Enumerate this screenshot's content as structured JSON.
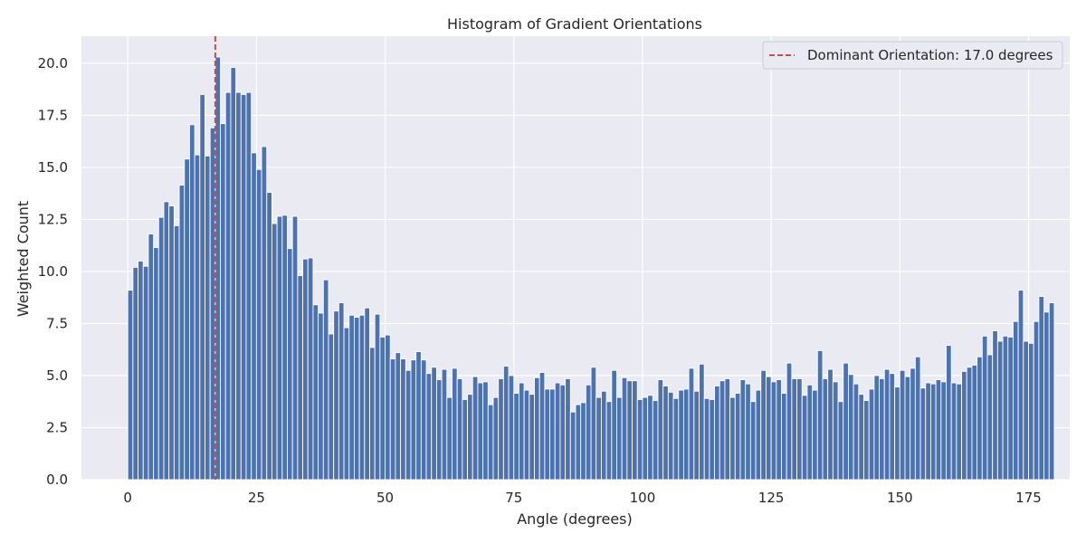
{
  "chart_data": {
    "type": "bar",
    "title": "Histogram of Gradient Orientations",
    "xlabel": "Angle (degrees)",
    "ylabel": "Weighted Count",
    "xlim": [
      -9,
      183
    ],
    "ylim": [
      0,
      21.3
    ],
    "x_ticks": [
      0,
      25,
      50,
      75,
      100,
      125,
      150,
      175
    ],
    "y_ticks": [
      0,
      2.5,
      5,
      7.5,
      10,
      12.5,
      15,
      17.5,
      20
    ],
    "x_tick_labels": [
      "0",
      "25",
      "50",
      "75",
      "100",
      "125",
      "150",
      "175"
    ],
    "y_tick_labels": [
      "0.0",
      "2.5",
      "5.0",
      "7.5",
      "10.0",
      "12.5",
      "15.0",
      "17.5",
      "20.0"
    ],
    "grid": true,
    "bar_color": "#4c72b0",
    "background_color": "#eaeaf2",
    "bin_width": 1,
    "x_start": 0,
    "values": [
      9.1,
      10.2,
      10.5,
      10.25,
      11.8,
      11.15,
      12.6,
      13.35,
      13.15,
      12.2,
      14.15,
      15.4,
      17.05,
      15.6,
      18.5,
      15.55,
      16.9,
      20.3,
      17.1,
      18.6,
      19.8,
      18.6,
      18.5,
      18.6,
      15.7,
      14.9,
      16.0,
      13.8,
      12.3,
      12.65,
      12.7,
      11.1,
      12.65,
      9.8,
      10.6,
      10.65,
      8.4,
      8.0,
      9.6,
      7.0,
      8.1,
      8.5,
      7.3,
      7.9,
      7.8,
      7.9,
      8.25,
      6.35,
      7.95,
      6.85,
      6.95,
      5.8,
      6.1,
      5.8,
      5.25,
      5.75,
      6.15,
      5.75,
      5.1,
      5.4,
      4.8,
      5.3,
      3.95,
      5.35,
      4.85,
      3.85,
      4.1,
      4.95,
      4.65,
      4.7,
      3.6,
      3.95,
      4.85,
      5.45,
      5.0,
      4.15,
      4.65,
      4.3,
      4.1,
      4.9,
      5.15,
      4.35,
      4.35,
      4.65,
      4.55,
      4.85,
      3.25,
      3.6,
      3.7,
      4.55,
      5.4,
      3.95,
      4.25,
      3.75,
      5.25,
      3.95,
      4.9,
      4.75,
      4.75,
      3.85,
      3.95,
      4.05,
      3.8,
      4.8,
      4.5,
      4.2,
      3.9,
      4.3,
      4.35,
      5.35,
      4.25,
      5.55,
      3.9,
      3.85,
      4.5,
      4.75,
      4.85,
      3.95,
      4.15,
      4.8,
      4.6,
      3.75,
      4.3,
      5.25,
      4.95,
      4.7,
      4.8,
      4.15,
      5.6,
      4.85,
      4.85,
      4.05,
      4.55,
      4.3,
      6.2,
      4.85,
      5.3,
      4.7,
      3.75,
      5.6,
      5.05,
      4.6,
      4.1,
      3.8,
      4.35,
      5.0,
      4.85,
      5.3,
      5.1,
      4.45,
      5.25,
      4.95,
      5.35,
      5.9,
      4.4,
      4.65,
      4.6,
      4.8,
      4.7,
      6.45,
      4.65,
      4.6,
      5.2,
      5.4,
      5.5,
      5.9,
      6.9,
      6.0,
      7.15,
      6.65,
      6.9,
      6.85,
      7.6,
      9.1,
      6.65,
      6.55,
      7.6,
      8.8,
      8.05,
      8.5
    ],
    "reference_line": {
      "x": 17.0,
      "color": "#c44e52",
      "style": "dashed",
      "label": "Dominant Orientation: 17.0 degrees"
    },
    "legend_position": "top-right"
  }
}
